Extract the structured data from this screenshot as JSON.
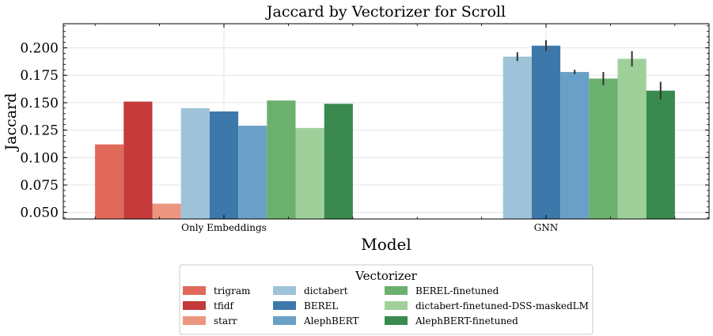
{
  "chart_data": {
    "type": "bar",
    "title": "Jaccard by Vectorizer for Scroll",
    "xlabel": "Model",
    "ylabel": "Jaccard",
    "categories": [
      "Only Embeddings",
      "GNN"
    ],
    "ylim": [
      0.044,
      0.222
    ],
    "yticks": [
      "0.050",
      "0.075",
      "0.100",
      "0.125",
      "0.150",
      "0.175",
      "0.200"
    ],
    "grid": true,
    "legend": {
      "title": "Vectorizer",
      "placement": "bottom-center",
      "columns": 3
    },
    "series": [
      {
        "name": "trigram",
        "color": "#e0695a",
        "values": [
          0.112,
          null
        ],
        "errors": [
          null,
          null
        ]
      },
      {
        "name": "tfidf",
        "color": "#c43a3a",
        "values": [
          0.151,
          null
        ],
        "errors": [
          null,
          null
        ]
      },
      {
        "name": "starr",
        "color": "#ec9680",
        "values": [
          0.058,
          null
        ],
        "errors": [
          null,
          null
        ]
      },
      {
        "name": "dictabert",
        "color": "#9ec3d8",
        "values": [
          0.145,
          0.192
        ],
        "errors": [
          null,
          0.004
        ]
      },
      {
        "name": "BEREL",
        "color": "#3d78ab",
        "values": [
          0.142,
          0.202
        ],
        "errors": [
          null,
          0.005
        ]
      },
      {
        "name": "AlephBERT",
        "color": "#6aa0c7",
        "values": [
          0.129,
          0.178
        ],
        "errors": [
          null,
          0.002
        ]
      },
      {
        "name": "BEREL-finetuned",
        "color": "#6cb06e",
        "values": [
          0.152,
          0.172
        ],
        "errors": [
          null,
          0.006
        ]
      },
      {
        "name": "dictabert-finetuned-DSS-maskedLM",
        "color": "#a0d09a",
        "values": [
          0.127,
          0.19
        ],
        "errors": [
          null,
          0.007
        ]
      },
      {
        "name": "AlephBERT-finetuned",
        "color": "#3a8a50",
        "values": [
          0.149,
          0.161
        ],
        "errors": [
          null,
          0.008
        ]
      }
    ]
  }
}
